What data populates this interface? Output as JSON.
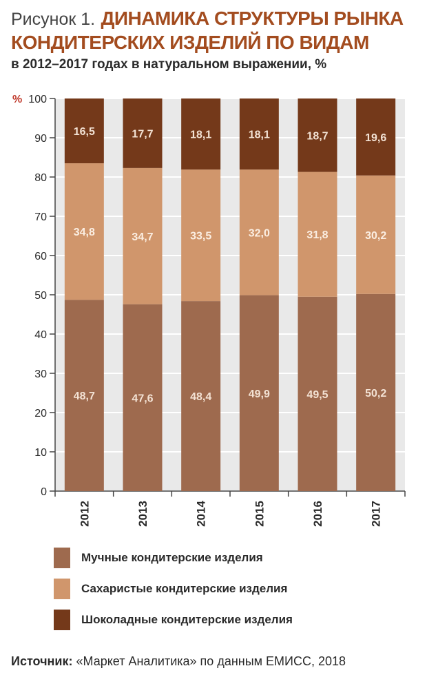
{
  "header": {
    "figure_label": "Рисунок 1.",
    "title_line1": "ДИНАМИКА СТРУКТУРЫ РЫНКА",
    "title_line2": "КОНДИТЕРСКИХ ИЗДЕЛИЙ ПО ВИДАМ",
    "subtitle": "в 2012–2017 годах в натуральном выражении, %"
  },
  "chart_data": {
    "type": "bar",
    "stacked": true,
    "categories": [
      "2012",
      "2013",
      "2014",
      "2015",
      "2016",
      "2017"
    ],
    "series": [
      {
        "name": "Мучные кондитерские изделия",
        "values": [
          48.7,
          47.6,
          48.4,
          49.9,
          49.5,
          50.2
        ],
        "labels": [
          "48,7",
          "47,6",
          "48,4",
          "49,9",
          "49,5",
          "50,2"
        ],
        "color": "#9e6a4e",
        "label_color": "#f3e2d4"
      },
      {
        "name": "Сахаристые кондитерские изделия",
        "values": [
          34.8,
          34.7,
          33.5,
          32.0,
          31.8,
          30.2
        ],
        "labels": [
          "34,8",
          "34,7",
          "33,5",
          "32,0",
          "31,8",
          "30,2"
        ],
        "color": "#d0966c",
        "label_color": "#fbeee2"
      },
      {
        "name": "Шоколадные кондитерские изделия",
        "values": [
          16.5,
          17.7,
          18.1,
          18.1,
          18.7,
          19.6
        ],
        "labels": [
          "16,5",
          "17,7",
          "18,1",
          "18,1",
          "18,7",
          "19,6"
        ],
        "color": "#74391a",
        "label_color": "#f3e2d4"
      }
    ],
    "ylim": [
      0,
      100
    ],
    "yticks": [
      0,
      10,
      20,
      30,
      40,
      50,
      60,
      70,
      80,
      90,
      100
    ],
    "ylabel": "%",
    "ylabel_color": "#c0392b",
    "plot_background": "#e9e9e9",
    "grid": true,
    "legend_position": "bottom"
  },
  "legend": {
    "items": [
      {
        "label": "Мучные кондитерские изделия",
        "color": "#9e6a4e"
      },
      {
        "label": "Сахаристые кондитерские изделия",
        "color": "#d0966c"
      },
      {
        "label": "Шоколадные кондитерские изделия",
        "color": "#74391a"
      }
    ]
  },
  "source": {
    "label": "Источник:",
    "text": "«Маркет Аналитика» по данным ЕМИСС, 2018"
  }
}
